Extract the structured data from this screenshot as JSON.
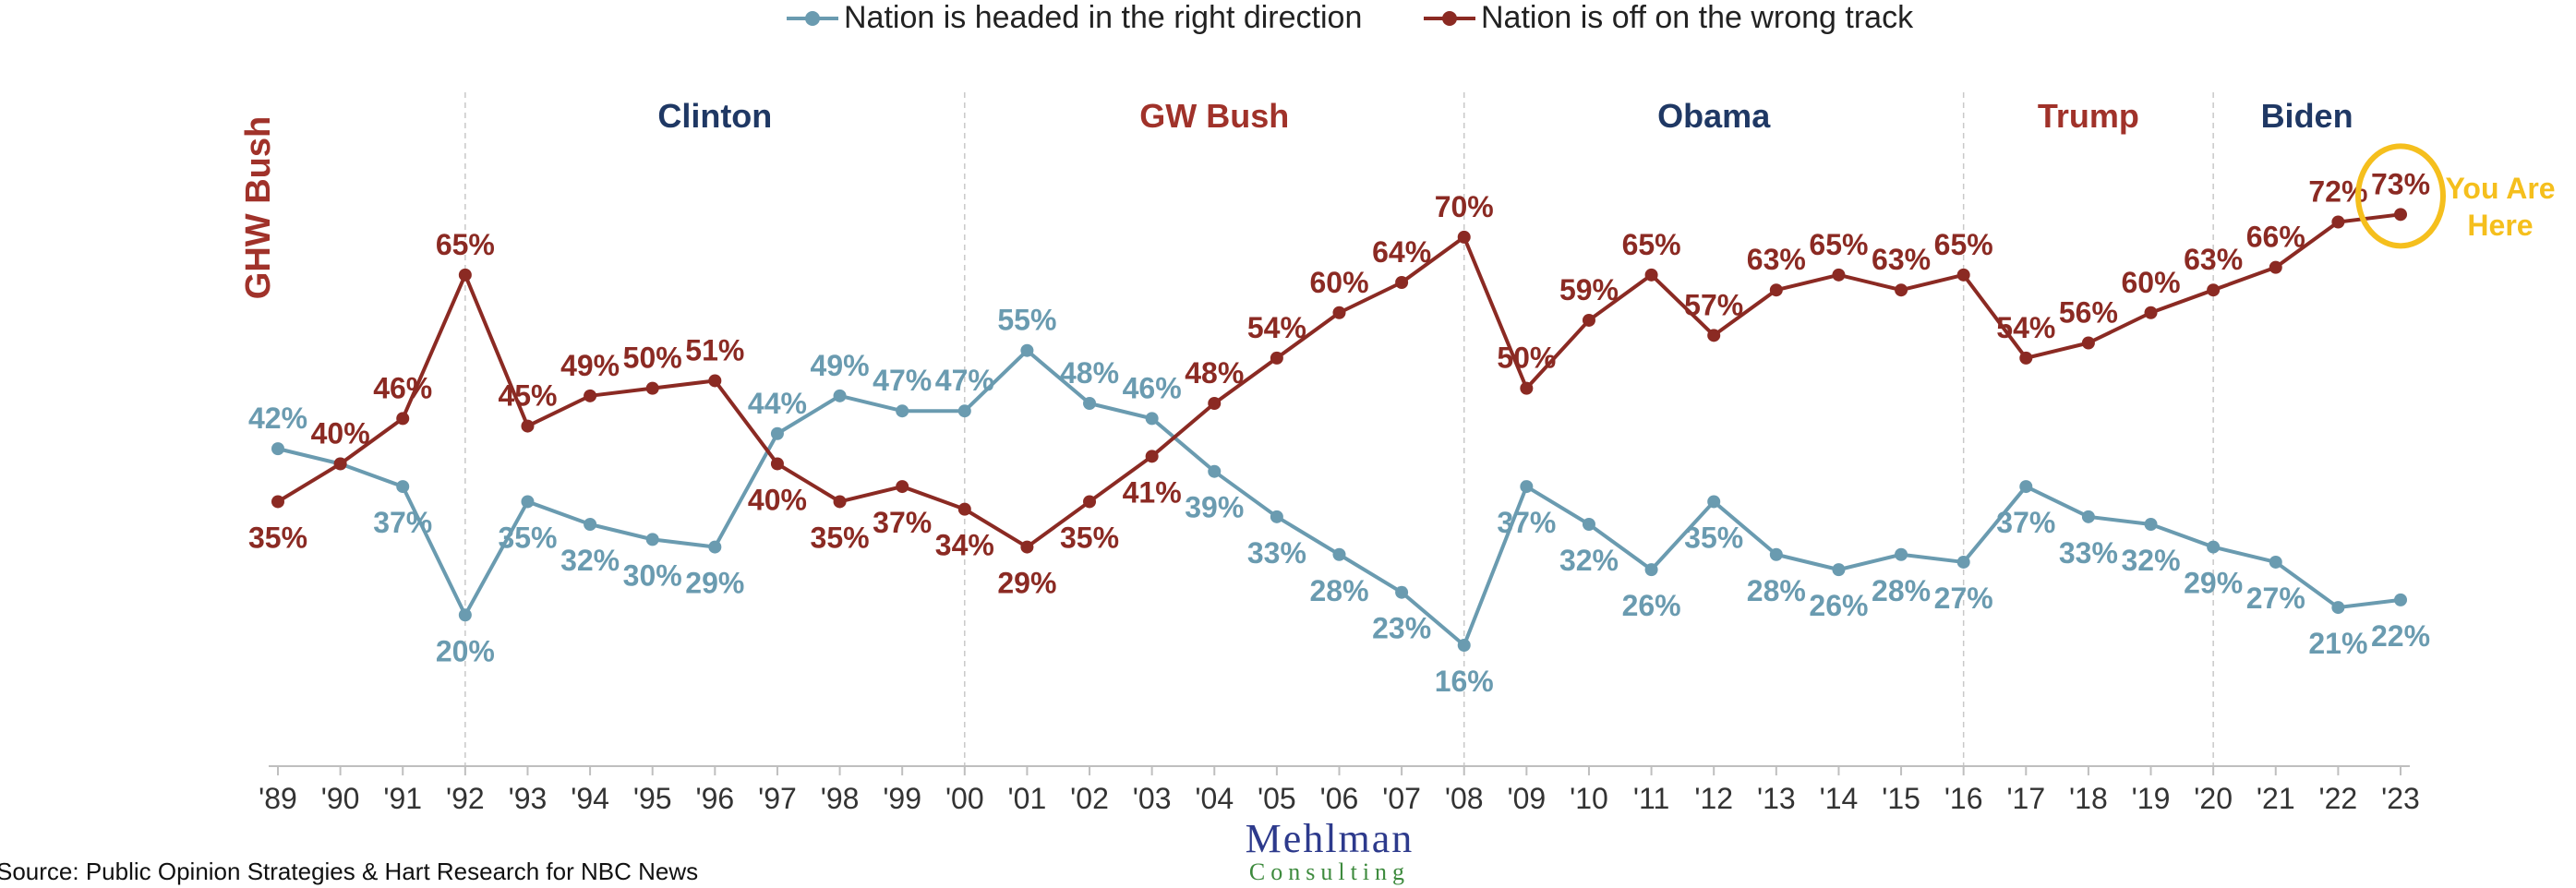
{
  "chart_data": {
    "type": "line",
    "title": "",
    "xlabel": "",
    "ylabel": "",
    "categories": [
      "'89",
      "'90",
      "'91",
      "'92",
      "'93",
      "'94",
      "'95",
      "'96",
      "'97",
      "'98",
      "'99",
      "'00",
      "'01",
      "'02",
      "'03",
      "'04",
      "'05",
      "'06",
      "'07",
      "'08",
      "'09",
      "'10",
      "'11",
      "'12",
      "'13",
      "'14",
      "'15",
      "'16",
      "'17",
      "'18",
      "'19",
      "'20",
      "'21",
      "'22",
      "'23"
    ],
    "ylim": [
      0,
      80
    ],
    "grid": false,
    "legend_position": "top",
    "series": [
      {
        "name": "Nation is headed in the right direction",
        "color": "#6a9bb0",
        "values": [
          42,
          40,
          37,
          20,
          35,
          32,
          30,
          29,
          44,
          49,
          47,
          47,
          55,
          48,
          46,
          39,
          33,
          28,
          23,
          16,
          37,
          32,
          26,
          35,
          28,
          26,
          28,
          27,
          37,
          33,
          32,
          29,
          27,
          21,
          22
        ],
        "labels": [
          "42%",
          "",
          "37%",
          "20%",
          "35%",
          "32%",
          "30%",
          "29%",
          "44%",
          "49%",
          "47%",
          "47%",
          "55%",
          "48%",
          "46%",
          "39%",
          "33%",
          "28%",
          "23%",
          "16%",
          "37%",
          "32%",
          "26%",
          "35%",
          "28%",
          "26%",
          "28%",
          "27%",
          "37%",
          "33%",
          "32%",
          "29%",
          "27%",
          "21%",
          "22%"
        ]
      },
      {
        "name": "Nation is off on the wrong track",
        "color": "#8b2a23",
        "values": [
          35,
          40,
          46,
          65,
          45,
          49,
          50,
          51,
          40,
          35,
          37,
          34,
          29,
          35,
          41,
          48,
          54,
          60,
          64,
          70,
          50,
          59,
          65,
          57,
          63,
          65,
          63,
          65,
          54,
          56,
          60,
          63,
          66,
          72,
          73
        ],
        "labels": [
          "35%",
          "40%",
          "46%",
          "65%",
          "45%",
          "49%",
          "50%",
          "51%",
          "40%",
          "35%",
          "37%",
          "34%",
          "29%",
          "35%",
          "41%",
          "48%",
          "54%",
          "60%",
          "64%",
          "70%",
          "50%",
          "59%",
          "65%",
          "57%",
          "63%",
          "65%",
          "63%",
          "65%",
          "54%",
          "56%",
          "60%",
          "63%",
          "66%",
          "72%",
          "73%"
        ]
      }
    ],
    "presidents": [
      {
        "name": "GHW Bush",
        "color": "#a0322a",
        "start": 0,
        "end": 3,
        "vertical": true
      },
      {
        "name": "Clinton",
        "color": "#1f3864",
        "start": 3,
        "end": 11
      },
      {
        "name": "GW Bush",
        "color": "#a0322a",
        "start": 11,
        "end": 19
      },
      {
        "name": "Obama",
        "color": "#1f3864",
        "start": 19,
        "end": 27
      },
      {
        "name": "Trump",
        "color": "#a0322a",
        "start": 27,
        "end": 31
      },
      {
        "name": "Biden",
        "color": "#1f3864",
        "start": 31,
        "end": 34
      }
    ],
    "annotation": {
      "text_line1": "You Are",
      "text_line2": "Here",
      "color": "#f5bf1d",
      "point_index": 34
    }
  },
  "legend": {
    "right_direction": "Nation is headed in the right direction",
    "wrong_track": "Nation is off on the wrong track"
  },
  "source": "Source: Public Opinion Strategies & Hart Research for NBC News",
  "logo": {
    "top": "Mehlman",
    "bottom": "Consulting"
  }
}
